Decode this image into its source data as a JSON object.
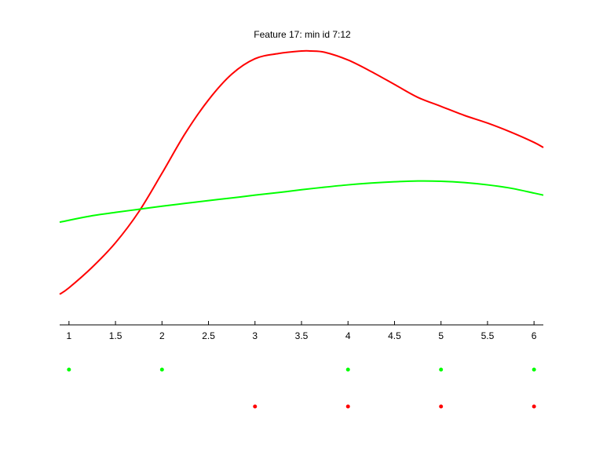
{
  "chart_data": {
    "type": "line",
    "title": "Feature 17: min id 7:12",
    "xlabel": "",
    "ylabel": "",
    "xlim": [
      0.9,
      6.1
    ],
    "ylim": [
      0,
      1
    ],
    "grid": false,
    "legend": "none",
    "xticks": [
      "1",
      "1.5",
      "2",
      "2.5",
      "3",
      "3.5",
      "4",
      "4.5",
      "5",
      "5.5",
      "6"
    ],
    "series": [
      {
        "color": "#ff0000",
        "x": [
          0.9,
          1.0,
          1.25,
          1.5,
          1.75,
          2.0,
          2.25,
          2.5,
          2.75,
          3.0,
          3.25,
          3.5,
          3.6,
          3.75,
          4.0,
          4.25,
          4.5,
          4.75,
          5.0,
          5.25,
          5.5,
          5.75,
          6.0,
          6.1
        ],
        "y": [
          0.055,
          0.08,
          0.16,
          0.255,
          0.375,
          0.525,
          0.68,
          0.81,
          0.91,
          0.97,
          0.99,
          1.0,
          1.0,
          0.995,
          0.965,
          0.92,
          0.87,
          0.82,
          0.785,
          0.75,
          0.72,
          0.685,
          0.645,
          0.625
        ]
      },
      {
        "color": "#00ff00",
        "x": [
          0.9,
          1.25,
          1.5,
          1.75,
          2.0,
          2.25,
          2.5,
          2.75,
          3.0,
          3.25,
          3.5,
          3.75,
          4.0,
          4.25,
          4.5,
          4.75,
          5.0,
          5.25,
          5.5,
          5.75,
          6.0,
          6.1
        ],
        "y": [
          0.335,
          0.36,
          0.373,
          0.385,
          0.397,
          0.408,
          0.419,
          0.429,
          0.44,
          0.45,
          0.461,
          0.471,
          0.48,
          0.487,
          0.492,
          0.495,
          0.494,
          0.489,
          0.48,
          0.467,
          0.448,
          0.44
        ]
      }
    ],
    "markers": [
      {
        "color": "#00ff00",
        "x": [
          1,
          2,
          4,
          5,
          6
        ]
      },
      {
        "color": "#ff0000",
        "x": [
          3,
          4,
          5,
          6
        ]
      }
    ]
  }
}
